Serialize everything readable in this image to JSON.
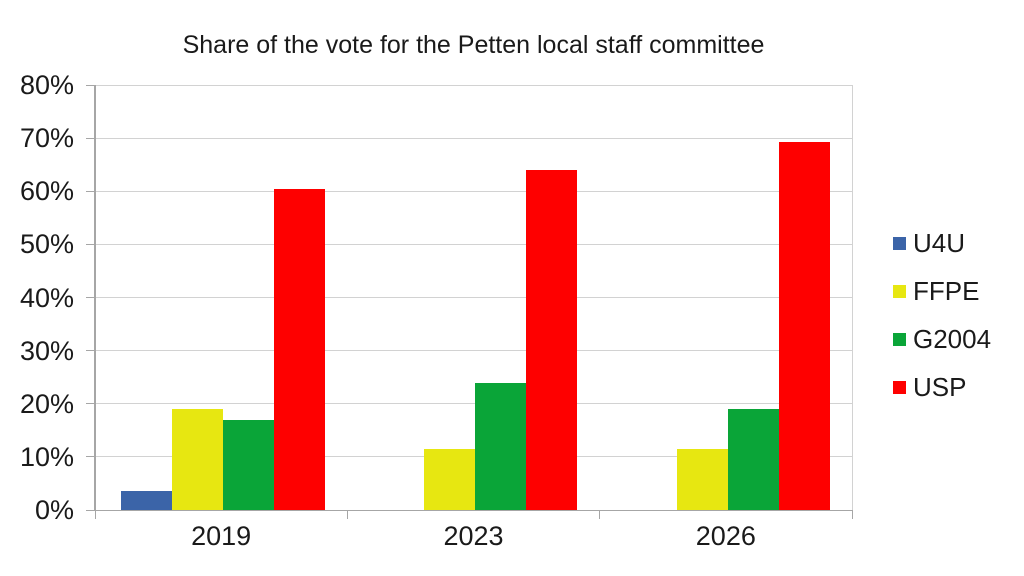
{
  "chart_data": {
    "type": "bar",
    "title": "Share of the vote for the Petten local staff committee",
    "categories": [
      "2019",
      "2023",
      "2026"
    ],
    "series": [
      {
        "name": "U4U",
        "color": "#3b64a8",
        "values": [
          3.5,
          null,
          null
        ]
      },
      {
        "name": "FFPE",
        "color": "#e7e711",
        "values": [
          19,
          11.5,
          11.5
        ]
      },
      {
        "name": "G2004",
        "color": "#0aa538",
        "values": [
          17,
          24,
          19
        ]
      },
      {
        "name": "USP",
        "color": "#fe0000",
        "values": [
          60.5,
          64,
          69.3
        ]
      }
    ],
    "ylim": [
      0,
      80
    ],
    "ytick_step": 10,
    "yticks": [
      {
        "value": 0,
        "label": "0%"
      },
      {
        "value": 10,
        "label": "10%"
      },
      {
        "value": 20,
        "label": "20%"
      },
      {
        "value": 30,
        "label": "30%"
      },
      {
        "value": 40,
        "label": "40%"
      },
      {
        "value": 50,
        "label": "50%"
      },
      {
        "value": 60,
        "label": "60%"
      },
      {
        "value": 70,
        "label": "70%"
      },
      {
        "value": 80,
        "label": "80%"
      }
    ],
    "xlabel": "",
    "ylabel": "",
    "grid": true,
    "legend_position": "right",
    "colors": {
      "gridline": "#d2d2d2",
      "axis": "#a6a6a6",
      "text": "#1a1a1a",
      "background": "#ffffff"
    }
  }
}
